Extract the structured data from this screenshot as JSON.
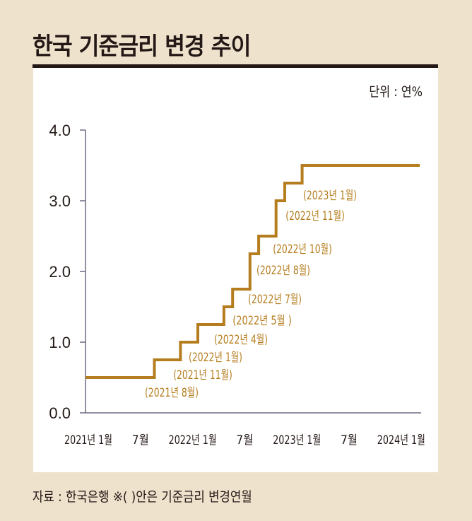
{
  "title": "한국 기준금리 변경 추이",
  "unit": "단위 : 연%",
  "source": "자료 : 한국은행 ※( )안은 기준금리 변경연월",
  "colors": {
    "line": "#b57d1e",
    "background": "#efe2cd",
    "axis": "#6e6a80",
    "text": "#231815"
  },
  "chart_data": {
    "type": "line",
    "step": true,
    "title": "한국 기준금리 변경 추이",
    "ylabel": "단위 : 연%",
    "ylim": [
      0,
      4.0
    ],
    "yticks": [
      "0.0",
      "1.0",
      "2.0",
      "3.0",
      "4.0"
    ],
    "xlim": [
      "2021-01",
      "2024-01"
    ],
    "xticks": [
      {
        "date": "2021-01",
        "label": "2021년 1월"
      },
      {
        "date": "2021-07",
        "label": "7월"
      },
      {
        "date": "2022-01",
        "label": "2022년 1월"
      },
      {
        "date": "2022-07",
        "label": "7월"
      },
      {
        "date": "2023-01",
        "label": "2023년 1월"
      },
      {
        "date": "2023-07",
        "label": "7월"
      },
      {
        "date": "2024-01",
        "label": "2024년 1월"
      }
    ],
    "points": [
      {
        "date": "2021-01",
        "value": 0.5,
        "label": ""
      },
      {
        "date": "2021-08",
        "value": 0.75,
        "label": "(2021년 8월)"
      },
      {
        "date": "2021-11",
        "value": 1.0,
        "label": "(2021년 11월)"
      },
      {
        "date": "2022-01",
        "value": 1.25,
        "label": "(2022년 1월)"
      },
      {
        "date": "2022-04",
        "value": 1.5,
        "label": "(2022년 4월)"
      },
      {
        "date": "2022-05",
        "value": 1.75,
        "label": "(2022년 5월 )"
      },
      {
        "date": "2022-07",
        "value": 2.25,
        "label": "(2022년 7월)"
      },
      {
        "date": "2022-08",
        "value": 2.5,
        "label": "(2022년 8월)"
      },
      {
        "date": "2022-10",
        "value": 3.0,
        "label": "(2022년 10월)"
      },
      {
        "date": "2022-11",
        "value": 3.25,
        "label": "(2022년 11월)"
      },
      {
        "date": "2023-01",
        "value": 3.5,
        "label": "(2023년 1월)"
      }
    ],
    "grid": false,
    "legend": "none"
  }
}
